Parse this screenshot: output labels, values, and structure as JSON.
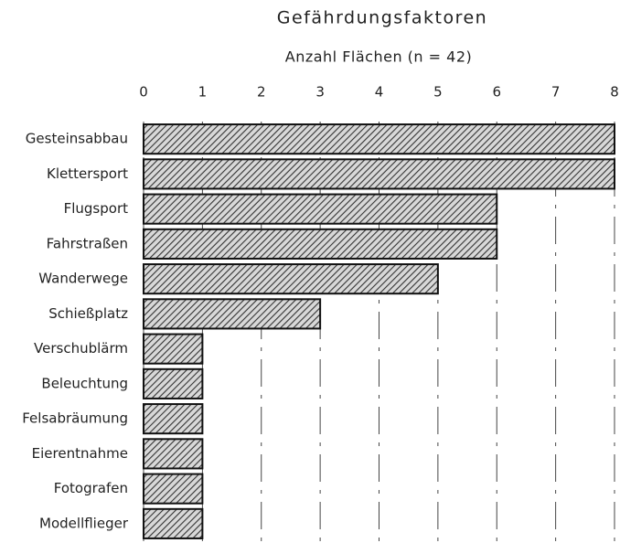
{
  "chart_data": {
    "type": "bar",
    "orientation": "horizontal",
    "title": "Gefährdungsfaktoren",
    "xlabel": "Anzahl Flächen (n = 42)",
    "categories": [
      "Gesteinsabbau",
      "Klettersport",
      "Flugsport",
      "Fahrstraßen",
      "Wanderwege",
      "Schießplatz",
      "Verschublärm",
      "Beleuchtung",
      "Felsabräumung",
      "Eierentnahme",
      "Fotografen",
      "Modellflieger"
    ],
    "values": [
      8,
      8,
      6,
      6,
      5,
      3,
      1,
      1,
      1,
      1,
      1,
      1
    ],
    "color": "#333333",
    "xlim": [
      0,
      8
    ],
    "xticks": [
      0,
      1,
      2,
      3,
      4,
      5,
      6,
      7,
      8
    ],
    "grid": true
  }
}
